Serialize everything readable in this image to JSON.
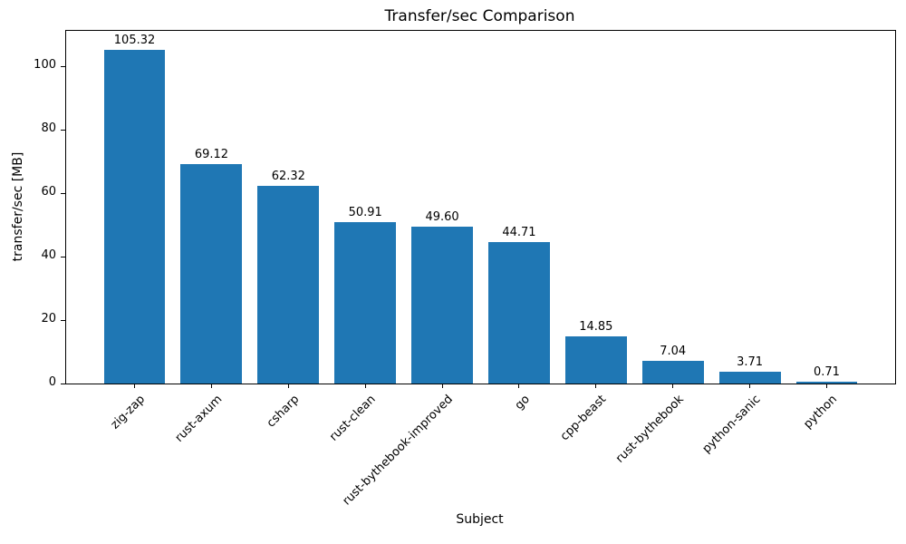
{
  "chart_data": {
    "type": "bar",
    "title": "Transfer/sec Comparison",
    "xlabel": "Subject",
    "ylabel": "transfer/sec [MB]",
    "categories": [
      "zig-zap",
      "rust-axum",
      "csharp",
      "rust-clean",
      "rust-bythebook-improved",
      "go",
      "cpp-beast",
      "rust-bythebook",
      "python-sanic",
      "python"
    ],
    "values": [
      105.32,
      69.12,
      62.32,
      50.91,
      49.6,
      44.71,
      14.85,
      7.04,
      3.71,
      0.71
    ],
    "value_labels": [
      "105.32",
      "69.12",
      "62.32",
      "50.91",
      "49.60",
      "44.71",
      "14.85",
      "7.04",
      "3.71",
      "0.71"
    ],
    "yticks": [
      0,
      20,
      40,
      60,
      80,
      100
    ],
    "ylim": [
      0,
      111.3
    ],
    "xtick_rotation": 45,
    "bar_color": "#1f77b4",
    "grid": false,
    "legend": null
  }
}
